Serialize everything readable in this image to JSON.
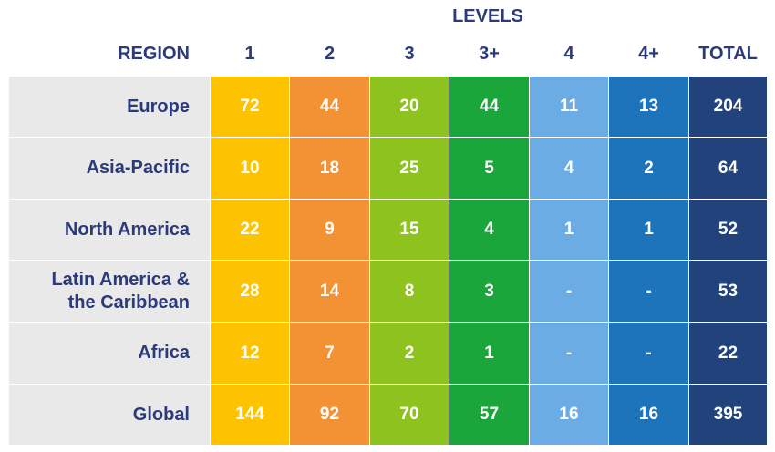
{
  "chart_data": {
    "type": "table",
    "title": "LEVELS",
    "region_header": "REGION",
    "columns": [
      "1",
      "2",
      "3",
      "3+",
      "4",
      "4+",
      "TOTAL"
    ],
    "column_colors": [
      "#fdc300",
      "#f39234",
      "#8dc21f",
      "#1aa63a",
      "#6cace4",
      "#1d74bb",
      "#22427c"
    ],
    "rows": [
      {
        "region": "Europe",
        "values": [
          "72",
          "44",
          "20",
          "44",
          "11",
          "13",
          "204"
        ]
      },
      {
        "region": "Asia-Pacific",
        "values": [
          "10",
          "18",
          "25",
          "5",
          "4",
          "2",
          "64"
        ]
      },
      {
        "region": "North America",
        "values": [
          "22",
          "9",
          "15",
          "4",
          "1",
          "1",
          "52"
        ]
      },
      {
        "region": "Latin America &\nthe Caribbean",
        "values": [
          "28",
          "14",
          "8",
          "3",
          "-",
          "-",
          "53"
        ]
      },
      {
        "region": "Africa",
        "values": [
          "12",
          "7",
          "2",
          "1",
          "-",
          "-",
          "22"
        ]
      },
      {
        "region": "Global",
        "values": [
          "144",
          "92",
          "70",
          "57",
          "16",
          "16",
          "395"
        ]
      }
    ]
  }
}
